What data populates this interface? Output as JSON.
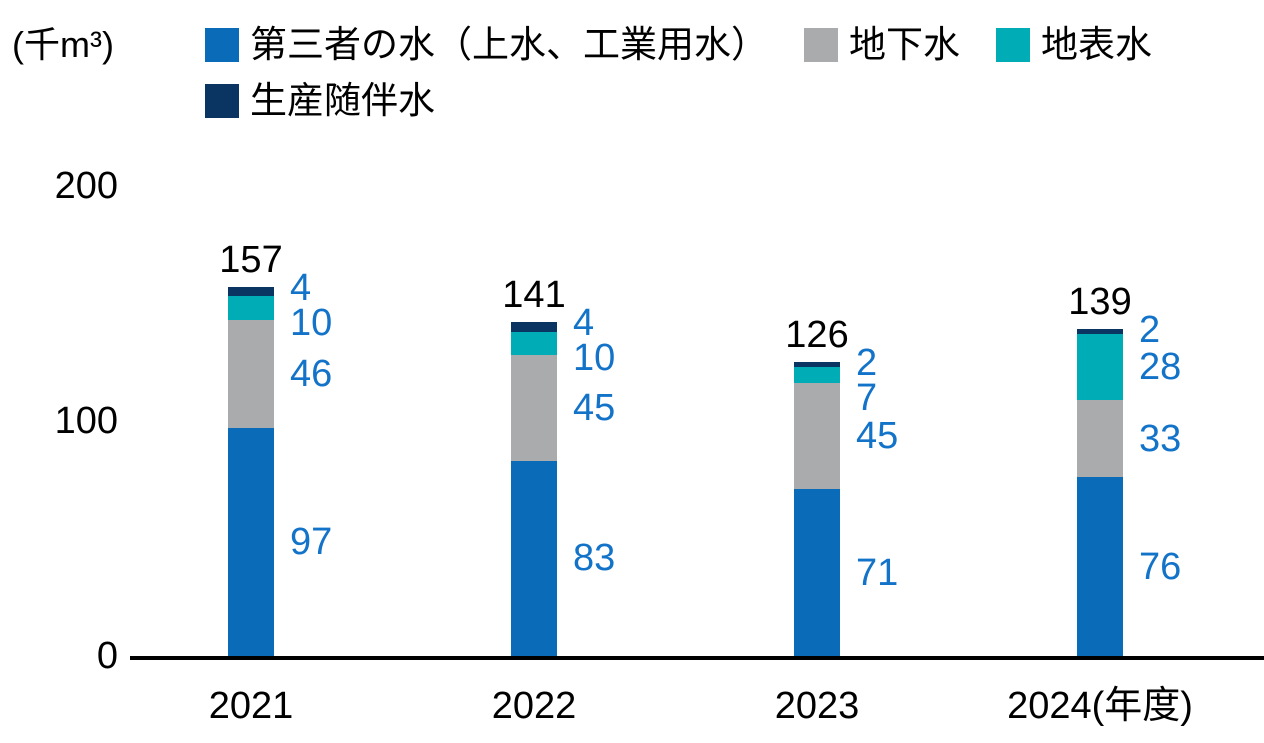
{
  "chart_data": {
    "type": "bar",
    "stacked": true,
    "unit": "(千m³)",
    "categories": [
      "2021",
      "2022",
      "2023",
      "2024(年度)"
    ],
    "series": [
      {
        "name": "第三者の水（上水、工業用水）",
        "color": "#0a6cb8",
        "values": [
          97,
          83,
          71,
          76
        ]
      },
      {
        "name": "地下水",
        "color": "#a9abad",
        "values": [
          46,
          45,
          45,
          33
        ]
      },
      {
        "name": "地表水",
        "color": "#00acb5",
        "values": [
          10,
          10,
          7,
          28
        ]
      },
      {
        "name": "生産随伴水",
        "color": "#0a3462",
        "values": [
          4,
          4,
          2,
          2
        ]
      }
    ],
    "totals": [
      157,
      141,
      126,
      139
    ],
    "yticks": [
      0,
      100,
      200
    ],
    "ylim": [
      0,
      200
    ],
    "legend_rows": [
      [
        0,
        1,
        2
      ],
      [
        3
      ]
    ],
    "legend_position": "top",
    "grid": false,
    "colors": {
      "value_label": "#1273c9",
      "total_label": "#000000",
      "axis": "#000000",
      "background": "#ffffff"
    }
  }
}
